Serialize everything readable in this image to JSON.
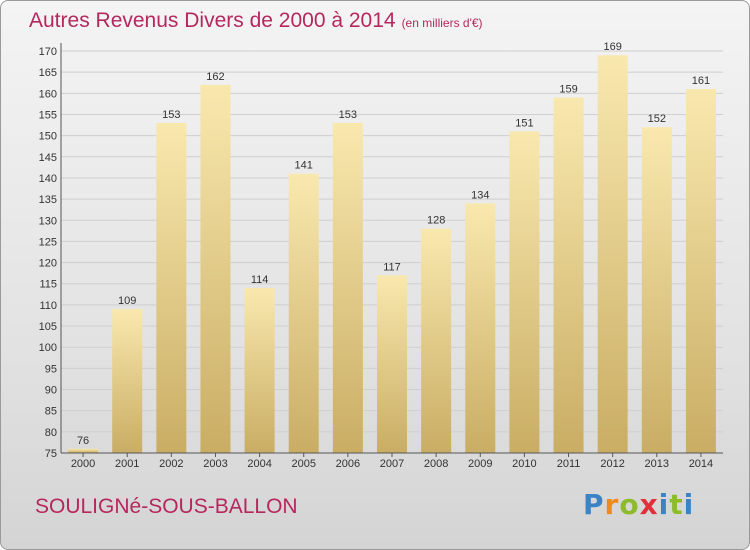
{
  "header": {
    "title": "Autres Revenus Divers de 2000 à 2014",
    "unit": "(en milliers d'€)"
  },
  "footer": {
    "commune": "SOULIGNé-SOUS-BALLON",
    "logo": "Proxiti"
  },
  "colors": {
    "title": "#b5285d",
    "bar_light": "#f7e3a4",
    "bar_dark": "#cdb36a",
    "grid": "#cfcfcf"
  },
  "chart_data": {
    "type": "bar",
    "title": "Autres Revenus Divers de 2000 à 2014",
    "subtitle": "(en milliers d'€)",
    "xlabel": "",
    "ylabel": "",
    "categories": [
      "2000",
      "2001",
      "2002",
      "2003",
      "2004",
      "2005",
      "2006",
      "2007",
      "2008",
      "2009",
      "2010",
      "2011",
      "2012",
      "2013",
      "2014"
    ],
    "values": [
      76,
      109,
      153,
      162,
      114,
      141,
      153,
      117,
      128,
      134,
      151,
      159,
      169,
      152,
      161
    ],
    "ylim": [
      75,
      170
    ],
    "yticks": [
      75,
      80,
      85,
      90,
      95,
      100,
      105,
      110,
      115,
      120,
      125,
      130,
      135,
      140,
      145,
      150,
      155,
      160,
      165,
      170
    ],
    "grid": true,
    "legend": "none"
  }
}
